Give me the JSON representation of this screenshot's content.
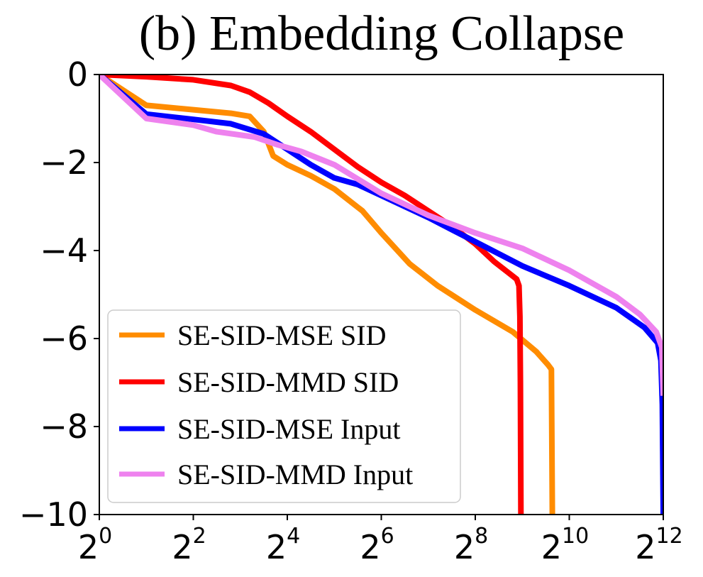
{
  "chart_data": {
    "type": "line",
    "title": "(b) Embedding Collapse",
    "xlabel": "",
    "ylabel": "",
    "x_scale": "log2",
    "xlim": [
      0,
      12
    ],
    "ylim": [
      -10,
      0
    ],
    "x_ticks": [
      {
        "base": "2",
        "exp": "0",
        "value": 0
      },
      {
        "base": "2",
        "exp": "2",
        "value": 2
      },
      {
        "base": "2",
        "exp": "4",
        "value": 4
      },
      {
        "base": "2",
        "exp": "6",
        "value": 6
      },
      {
        "base": "2",
        "exp": "8",
        "value": 8
      },
      {
        "base": "2",
        "exp": "10",
        "value": 10
      },
      {
        "base": "2",
        "exp": "12",
        "value": 12
      }
    ],
    "y_ticks": [
      {
        "label": "0",
        "value": 0
      },
      {
        "label": "−2",
        "value": -2
      },
      {
        "label": "−4",
        "value": -4
      },
      {
        "label": "−6",
        "value": -6
      },
      {
        "label": "−8",
        "value": -8
      },
      {
        "label": "−10",
        "value": -10
      }
    ],
    "grid": false,
    "legend_position": "lower-left",
    "series": [
      {
        "name": "SE-SID-MSE SID",
        "color": "#ff8c00",
        "points": [
          [
            0,
            0
          ],
          [
            1,
            -0.7
          ],
          [
            2,
            -0.8
          ],
          [
            2.8,
            -0.88
          ],
          [
            3.2,
            -0.95
          ],
          [
            3.5,
            -1.3
          ],
          [
            3.7,
            -1.85
          ],
          [
            4,
            -2.05
          ],
          [
            4.5,
            -2.3
          ],
          [
            5,
            -2.6
          ],
          [
            5.6,
            -3.1
          ],
          [
            6,
            -3.6
          ],
          [
            6.6,
            -4.3
          ],
          [
            7.2,
            -4.8
          ],
          [
            8,
            -5.35
          ],
          [
            8.8,
            -5.85
          ],
          [
            9.3,
            -6.3
          ],
          [
            9.55,
            -6.6
          ],
          [
            9.62,
            -6.7
          ],
          [
            9.64,
            -10
          ]
        ]
      },
      {
        "name": "SE-SID-MMD SID",
        "color": "#ff0000",
        "points": [
          [
            0,
            0
          ],
          [
            1,
            -0.05
          ],
          [
            2,
            -0.12
          ],
          [
            2.8,
            -0.25
          ],
          [
            3.2,
            -0.4
          ],
          [
            3.6,
            -0.65
          ],
          [
            4,
            -0.95
          ],
          [
            4.5,
            -1.3
          ],
          [
            5,
            -1.7
          ],
          [
            5.5,
            -2.1
          ],
          [
            6,
            -2.45
          ],
          [
            6.5,
            -2.75
          ],
          [
            7,
            -3.1
          ],
          [
            7.5,
            -3.45
          ],
          [
            8,
            -3.85
          ],
          [
            8.4,
            -4.25
          ],
          [
            8.7,
            -4.5
          ],
          [
            8.88,
            -4.65
          ],
          [
            8.93,
            -4.8
          ],
          [
            8.95,
            -5.5
          ],
          [
            8.96,
            -7
          ],
          [
            8.97,
            -10
          ]
        ]
      },
      {
        "name": "SE-SID-MSE Input",
        "color": "#0000ff",
        "points": [
          [
            0,
            0
          ],
          [
            1,
            -0.9
          ],
          [
            2,
            -1.02
          ],
          [
            2.8,
            -1.12
          ],
          [
            3.5,
            -1.35
          ],
          [
            4,
            -1.7
          ],
          [
            4.5,
            -2.05
          ],
          [
            5,
            -2.35
          ],
          [
            5.5,
            -2.5
          ],
          [
            6,
            -2.75
          ],
          [
            7,
            -3.25
          ],
          [
            8,
            -3.8
          ],
          [
            9,
            -4.35
          ],
          [
            10,
            -4.8
          ],
          [
            11,
            -5.3
          ],
          [
            11.6,
            -5.75
          ],
          [
            11.88,
            -6.1
          ],
          [
            11.95,
            -6.5
          ],
          [
            11.98,
            -7.5
          ],
          [
            12,
            -10
          ]
        ]
      },
      {
        "name": "SE-SID-MMD Input",
        "color": "#ee82ee",
        "points": [
          [
            0,
            0
          ],
          [
            1,
            -1.0
          ],
          [
            2,
            -1.15
          ],
          [
            2.5,
            -1.3
          ],
          [
            3.3,
            -1.42
          ],
          [
            3.8,
            -1.6
          ],
          [
            4.3,
            -1.75
          ],
          [
            5,
            -2.05
          ],
          [
            6,
            -2.7
          ],
          [
            7,
            -3.2
          ],
          [
            8,
            -3.6
          ],
          [
            9,
            -3.95
          ],
          [
            10,
            -4.45
          ],
          [
            11,
            -5.05
          ],
          [
            11.5,
            -5.45
          ],
          [
            11.85,
            -5.85
          ],
          [
            11.97,
            -6.2
          ],
          [
            12,
            -7.3
          ]
        ]
      }
    ]
  }
}
